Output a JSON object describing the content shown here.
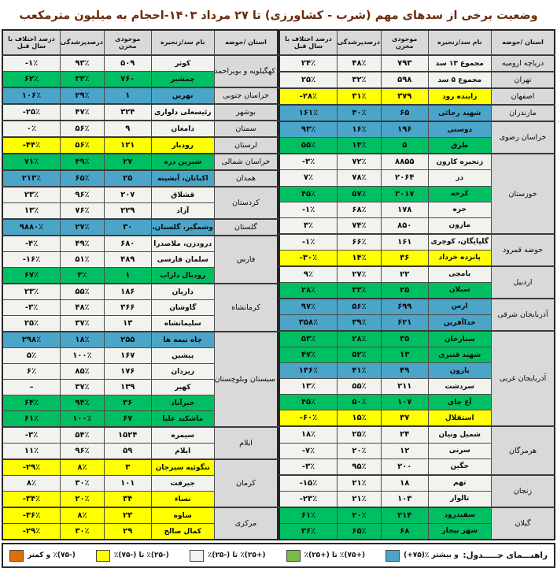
{
  "title": "وضعیت برخی از سدهای مهم (شرب - کشاورزی) تا ۲۷ مرداد ۱۴۰۳-احجام به میلیون مترمکعب",
  "columns": [
    "استان /حوضه",
    "نام سد/زنجیره",
    "موجودی مخزن",
    "درصدپرشدگی",
    "درصد اختلاف با سال قبل"
  ],
  "colors": {
    "row_blue": "#4ba5c9",
    "row_green": "#00bf63",
    "row_yellow": "#ffff00",
    "row_white": "#f2f2ee",
    "header_gray": "#d9d9d9",
    "legend_green": "#77bc45",
    "legend_orange": "#e36c0a",
    "title_color": "#6b2c0d"
  },
  "right_table": {
    "groups": [
      {
        "province": "دریاچه ارومیه",
        "rows": [
          {
            "name": "مجموع ۱۳ سد",
            "volume": "۷۹۳",
            "fill": "۴۸٪",
            "diff": "۲۴٪",
            "color": "white"
          }
        ]
      },
      {
        "province": "تهران",
        "rows": [
          {
            "name": "مجموع ۵ سد",
            "volume": "۵۹۸",
            "fill": "۳۲٪",
            "diff": "۲۵٪",
            "color": "white"
          }
        ]
      },
      {
        "province": "اصفهان",
        "rows": [
          {
            "name": "زاینده رود",
            "volume": "۳۷۹",
            "fill": "۳۱٪",
            "diff": "-۲۸٪",
            "color": "yellow"
          }
        ]
      },
      {
        "province": "مازندران",
        "rows": [
          {
            "name": "شهید رجائی",
            "volume": "۶۵",
            "fill": "۴۰٪",
            "diff": "۱۶۱٪",
            "color": "blue"
          }
        ]
      },
      {
        "province": "خراسان رضوی",
        "rows": [
          {
            "name": "دوستی",
            "volume": "۱۹۶",
            "fill": "۱۶٪",
            "diff": "۹۳٪",
            "color": "blue"
          },
          {
            "name": "طرق",
            "volume": "۵",
            "fill": "۱۴٪",
            "diff": "۵۵٪",
            "color": "green"
          }
        ]
      },
      {
        "province": "خوزستان",
        "rows": [
          {
            "name": "زنجیره کارون",
            "volume": "۸۸۵۵",
            "fill": "۷۲٪",
            "diff": "-۳٪",
            "color": "white"
          },
          {
            "name": "دز",
            "volume": "۲۰۶۴",
            "fill": "۷۸٪",
            "diff": "۷٪",
            "color": "white"
          },
          {
            "name": "کرخه",
            "volume": "۳۰۱۷",
            "fill": "۵۷٪",
            "diff": "۴۵٪",
            "color": "green"
          },
          {
            "name": "جره",
            "volume": "۱۷۸",
            "fill": "۶۸٪",
            "diff": "-۱٪",
            "color": "white"
          },
          {
            "name": "مارون",
            "volume": "۸۵۰",
            "fill": "۷۴٪",
            "diff": "۳٪",
            "color": "white"
          }
        ]
      },
      {
        "province": "حوضه قمرود",
        "rows": [
          {
            "name": "گلپایگان، کوچری",
            "volume": "۱۶۱",
            "fill": "۶۶٪",
            "diff": "-۱٪",
            "color": "white"
          },
          {
            "name": "پانزده خرداد",
            "volume": "۳۶",
            "fill": "۱۴٪",
            "diff": "-۳۰٪",
            "color": "yellow"
          }
        ]
      },
      {
        "province": "اردبیل",
        "rows": [
          {
            "name": "یامچی",
            "volume": "۲۲",
            "fill": "۲۷٪",
            "diff": "۹٪",
            "color": "white"
          },
          {
            "name": "سبلان",
            "volume": "۲۵",
            "fill": "۳۳٪",
            "diff": "۲۸٪",
            "color": "green"
          }
        ]
      },
      {
        "province": "آذربایجان شرقی",
        "rows": [
          {
            "name": "ارس",
            "volume": "۶۹۹",
            "fill": "۵۶٪",
            "diff": "۹۷٪",
            "color": "blue"
          },
          {
            "name": "خداآفرین",
            "volume": "۶۲۱",
            "fill": "۳۹٪",
            "diff": "۳۵۸٪",
            "color": "blue"
          }
        ]
      },
      {
        "province": "آذربایجان غربی",
        "rows": [
          {
            "name": "ستارخان",
            "volume": "۳۵",
            "fill": "۲۸٪",
            "diff": "۵۳٪",
            "color": "green"
          },
          {
            "name": "شهید قنبری",
            "volume": "۱۳",
            "fill": "۵۲٪",
            "diff": "۴۷٪",
            "color": "green"
          },
          {
            "name": "بارون",
            "volume": "۴۹",
            "fill": "۴۱٪",
            "diff": "۱۳۶٪",
            "color": "blue"
          },
          {
            "name": "سردشت",
            "volume": "۲۱۱",
            "fill": "۵۵٪",
            "diff": "۱۳٪",
            "color": "white"
          },
          {
            "name": "آغ چای",
            "volume": "۱۰۷",
            "fill": "۵۰٪",
            "diff": "۴۵٪",
            "color": "green"
          },
          {
            "name": "استقلال",
            "volume": "۳۷",
            "fill": "۱۵٪",
            "diff": "-۶۰٪",
            "color": "yellow"
          }
        ]
      },
      {
        "province": "هرمزگان",
        "rows": [
          {
            "name": "شمیل ونیان",
            "volume": "۲۴",
            "fill": "۲۵٪",
            "diff": "۱۸٪",
            "color": "white"
          },
          {
            "name": "سرنی",
            "volume": "۱۲",
            "fill": "۲۰٪",
            "diff": "-۷٪",
            "color": "white"
          },
          {
            "name": "جگین",
            "volume": "۲۰۰",
            "fill": "۹۵٪",
            "diff": "-۳٪",
            "color": "white"
          }
        ]
      },
      {
        "province": "زنجان",
        "rows": [
          {
            "name": "تهم",
            "volume": "۱۸",
            "fill": "۲۱٪",
            "diff": "-۱۵٪",
            "color": "white"
          },
          {
            "name": "تالوار",
            "volume": "۱۰۳",
            "fill": "۲۱٪",
            "diff": "-۲۳٪",
            "color": "white"
          }
        ]
      },
      {
        "province": "گیلان",
        "rows": [
          {
            "name": "سفیدرود",
            "volume": "۲۱۴",
            "fill": "۲۰٪",
            "diff": "۶۱٪",
            "color": "green"
          },
          {
            "name": "شهر بیجار",
            "volume": "۶۸",
            "fill": "۶۵٪",
            "diff": "۳۶٪",
            "color": "green"
          }
        ]
      }
    ]
  },
  "left_table": {
    "groups": [
      {
        "province": "کهگیلویه و بویراحمد",
        "rows": [
          {
            "name": "کوثر",
            "volume": "۵۰۹",
            "fill": "۹۳٪",
            "diff": "-۱٪",
            "color": "white"
          },
          {
            "name": "چمشیر",
            "volume": "۷۶۰",
            "fill": "۳۳٪",
            "diff": "۶۲٪",
            "color": "green"
          }
        ]
      },
      {
        "province": "خراسان جنوبی",
        "rows": [
          {
            "name": "نهرین",
            "volume": "۱",
            "fill": "۲۹٪",
            "diff": "۱۰۶٪",
            "color": "blue"
          }
        ]
      },
      {
        "province": "بوشهر",
        "rows": [
          {
            "name": "رئیسعلی دلواری",
            "volume": "۳۲۴",
            "fill": "۴۷٪",
            "diff": "-۲۵٪",
            "color": "white"
          }
        ]
      },
      {
        "province": "سمنان",
        "rows": [
          {
            "name": "دامغان",
            "volume": "۹",
            "fill": "۵۶٪",
            "diff": "۰٪",
            "color": "white"
          }
        ]
      },
      {
        "province": "لرستان",
        "rows": [
          {
            "name": "رودبار",
            "volume": "۱۲۱",
            "fill": "۵۶٪",
            "diff": "-۴۴٪",
            "color": "yellow"
          }
        ]
      },
      {
        "province": "خراسان شمالی",
        "rows": [
          {
            "name": "شیرین دره",
            "volume": "۲۷",
            "fill": "۴۹٪",
            "diff": "۷۱٪",
            "color": "green"
          }
        ]
      },
      {
        "province": "همدان",
        "rows": [
          {
            "name": "اکباتان، آبشینه",
            "volume": "۲۵",
            "fill": "۶۵٪",
            "diff": "۲۱۳٪",
            "color": "blue"
          }
        ]
      },
      {
        "province": "کردستان",
        "rows": [
          {
            "name": "قشلاق",
            "volume": "۲۰۷",
            "fill": "۹۶٪",
            "diff": "۲۳٪",
            "color": "white"
          },
          {
            "name": "آزاد",
            "volume": "۲۲۹",
            "fill": "۷۶٪",
            "diff": "۱۳٪",
            "color": "white"
          }
        ]
      },
      {
        "province": "گلستان",
        "rows": [
          {
            "name": "وشمگیر، گلستان، بوستان",
            "volume": "۳۰",
            "fill": "۲۷٪",
            "diff": "۹۸۸۰٪",
            "color": "blue"
          }
        ]
      },
      {
        "province": "فارس",
        "rows": [
          {
            "name": "درودزن، ملاصدرا",
            "volume": "۶۸۰",
            "fill": "۴۹٪",
            "diff": "-۴٪",
            "color": "white"
          },
          {
            "name": "سلمان فارسی",
            "volume": "۴۸۹",
            "fill": "۵۱٪",
            "diff": "-۱۶٪",
            "color": "white"
          },
          {
            "name": "رودبال داراب",
            "volume": "۱",
            "fill": "۳٪",
            "diff": "۶۷٪",
            "color": "green"
          }
        ]
      },
      {
        "province": "کرمانشاه",
        "rows": [
          {
            "name": "داریان",
            "volume": "۱۸۶",
            "fill": "۵۵٪",
            "diff": "۲۳٪",
            "color": "white"
          },
          {
            "name": "گاوشان",
            "volume": "۳۶۶",
            "fill": "۴۸٪",
            "diff": "-۳٪",
            "color": "white"
          },
          {
            "name": "سلیمانشاه",
            "volume": "۱۳",
            "fill": "۳۷٪",
            "diff": "۲۵٪",
            "color": "white"
          }
        ]
      },
      {
        "province": "سیستان وبلوچستان",
        "rows": [
          {
            "name": "چاه نیمه ها",
            "volume": "۲۵۵",
            "fill": "۱۸٪",
            "diff": "۲۹۸٪",
            "color": "blue"
          },
          {
            "name": "پیشین",
            "volume": "۱۶۷",
            "fill": "۱۰۰٪",
            "diff": "۵٪",
            "color": "white"
          },
          {
            "name": "زیردان",
            "volume": "۱۷۶",
            "fill": "۸۵٪",
            "diff": "۶٪",
            "color": "white"
          },
          {
            "name": "کهیر",
            "volume": "۱۳۹",
            "fill": "۳۷٪",
            "diff": "–",
            "color": "white"
          },
          {
            "name": "خیرآباد",
            "volume": "۳۶",
            "fill": "۹۴٪",
            "diff": "۶۴٪",
            "color": "green"
          },
          {
            "name": "ماشکید علیا",
            "volume": "۶۷",
            "fill": "۱۰۰٪",
            "diff": "۶۱٪",
            "color": "green"
          }
        ]
      },
      {
        "province": "ایلام",
        "rows": [
          {
            "name": "سیمره",
            "volume": "۱۵۲۴",
            "fill": "۵۴٪",
            "diff": "-۳٪",
            "color": "white"
          },
          {
            "name": "ایلام",
            "volume": "۵۹",
            "fill": "۹۶٪",
            "diff": "۱۱٪",
            "color": "white"
          }
        ]
      },
      {
        "province": "کرمان",
        "rows": [
          {
            "name": "تنگوئیه سیرجان",
            "volume": "۳",
            "fill": "۸٪",
            "diff": "-۲۹٪",
            "color": "yellow"
          },
          {
            "name": "جیرفت",
            "volume": "۱۰۱",
            "fill": "۳۰٪",
            "diff": "۸٪",
            "color": "white"
          },
          {
            "name": "نساء",
            "volume": "۳۴",
            "fill": "۲۰٪",
            "diff": "-۳۴٪",
            "color": "yellow"
          }
        ]
      },
      {
        "province": "مرکزی",
        "rows": [
          {
            "name": "ساوه",
            "volume": "۲۳",
            "fill": "۸٪",
            "diff": "-۳۶٪",
            "color": "yellow"
          },
          {
            "name": "کمال صالح",
            "volume": "۲۹",
            "fill": "۳۰٪",
            "diff": "-۲۹٪",
            "color": "yellow"
          }
        ]
      }
    ]
  },
  "legend": {
    "label": "راهنـــمای جـــــدول:",
    "items": [
      {
        "color": "#4ba5c9",
        "label": "(+۷۵)٪ و بیشتر",
        "dir": "ltr"
      },
      {
        "color": "#77bc45",
        "label": "(+۷۵)٪ تا (+۲۵)٪",
        "dir": "rtl"
      },
      {
        "color": "#f2f2ee",
        "label": "(+۲۵)٪ تا (-۲۵)٪",
        "dir": "rtl"
      },
      {
        "color": "#ffff00",
        "label": "(-۲۵)٪ تا (-۷۵)٪",
        "dir": "rtl"
      },
      {
        "color": "#e36c0a",
        "label": "(-۷۵)٪ و کمتر",
        "dir": "rtl"
      }
    ]
  }
}
